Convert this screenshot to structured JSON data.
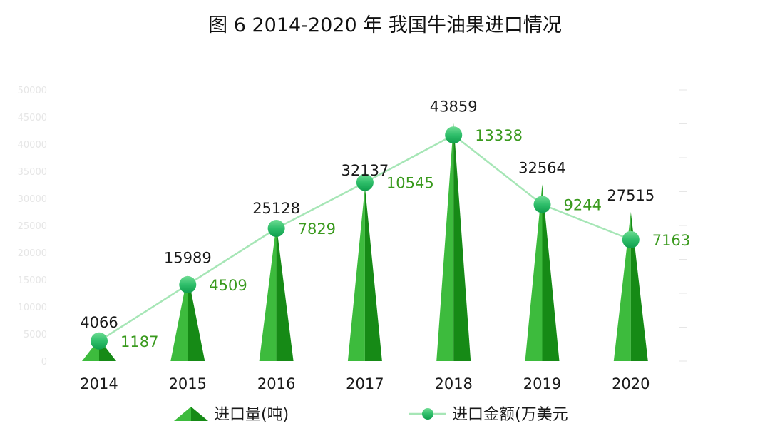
{
  "chart_data": {
    "type": "bar",
    "title": "图 6 2014-2020 年  我国牛油果进口情况",
    "categories": [
      "2014",
      "2015",
      "2016",
      "2017",
      "2018",
      "2019",
      "2020"
    ],
    "series": [
      {
        "name": "进口量(吨)",
        "type": "bar",
        "values": [
          4066,
          15989,
          25128,
          32137,
          43859,
          32564,
          27515
        ]
      },
      {
        "name": "进口金额(万美元",
        "type": "line",
        "values": [
          1187,
          4509,
          7829,
          10545,
          13338,
          9244,
          7163
        ]
      }
    ],
    "y_ticks": [
      "0",
      "5000",
      "10000",
      "15000",
      "20000",
      "25000",
      "30000",
      "35000",
      "40000",
      "45000",
      "50000"
    ],
    "ylim": [
      0,
      50000
    ],
    "secondary_ylim": [
      0,
      16000
    ],
    "grid": false,
    "legend_position": "bottom"
  },
  "colors": {
    "bar_light": "#3dbb3d",
    "bar_dark": "#168a16",
    "line": "#a6e6b6",
    "marker_top": "#66d68a",
    "marker_bottom": "#12a552",
    "volume_label": "#1a1a1a",
    "amount_label": "#3a9a1e",
    "faint_tick": "#e6e6e6"
  }
}
